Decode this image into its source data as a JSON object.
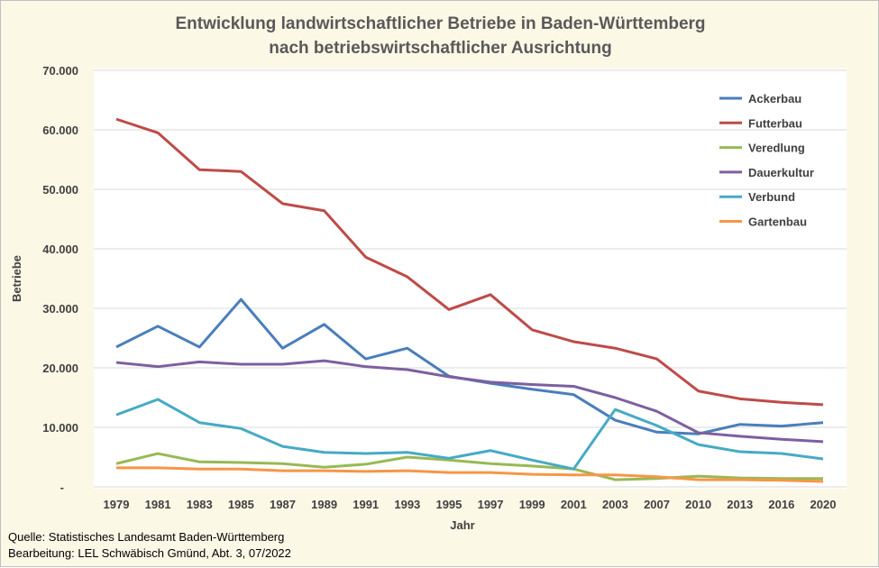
{
  "chart_data": {
    "type": "line",
    "title": [
      "Entwicklung landwirtschaftlicher Betriebe in Baden-Württemberg",
      "nach betriebswirtschaftlicher Ausrichtung"
    ],
    "xlabel": "Jahr",
    "ylabel": "Betriebe",
    "ylim": [
      0,
      70000
    ],
    "yticks": [
      "-",
      "10.000",
      "20.000",
      "30.000",
      "40.000",
      "50.000",
      "60.000",
      "70.000"
    ],
    "grid": true,
    "legend_position": "top-right",
    "categories": [
      "1979",
      "1981",
      "1983",
      "1985",
      "1987",
      "1989",
      "1991",
      "1993",
      "1995",
      "1997",
      "1999",
      "2001",
      "2003",
      "2007",
      "2010",
      "2013",
      "2016",
      "2020"
    ],
    "series": [
      {
        "name": "Ackerbau",
        "color": "#4a7ebb",
        "values": [
          23500,
          27000,
          23500,
          31500,
          23300,
          27300,
          21500,
          23300,
          18600,
          17400,
          16400,
          15500,
          11200,
          9200,
          8900,
          10500,
          10200,
          10800
        ]
      },
      {
        "name": "Futterbau",
        "color": "#be4b48",
        "values": [
          61800,
          59500,
          53300,
          53000,
          47600,
          46400,
          38600,
          35300,
          29800,
          32300,
          26400,
          24400,
          23300,
          21500,
          16100,
          14800,
          14200,
          13800
        ]
      },
      {
        "name": "Veredlung",
        "color": "#98b954",
        "values": [
          3900,
          5600,
          4200,
          4100,
          3900,
          3300,
          3800,
          5000,
          4500,
          3900,
          3500,
          3000,
          1200,
          1400,
          1800,
          1500,
          1400,
          1400
        ]
      },
      {
        "name": "Dauerkultur",
        "color": "#7d5fa0",
        "values": [
          20900,
          20200,
          21000,
          20600,
          20600,
          21200,
          20200,
          19700,
          18500,
          17600,
          17200,
          16900,
          15000,
          12700,
          9100,
          8500,
          8000,
          7600
        ]
      },
      {
        "name": "Verbund",
        "color": "#46aac5",
        "values": [
          12100,
          14700,
          10800,
          9800,
          6800,
          5800,
          5600,
          5800,
          4800,
          6100,
          4500,
          3000,
          13000,
          10300,
          7100,
          5900,
          5600,
          4700
        ]
      },
      {
        "name": "Gartenbau",
        "color": "#f79646",
        "values": [
          3200,
          3200,
          3000,
          3000,
          2700,
          2700,
          2600,
          2700,
          2400,
          2400,
          2100,
          2000,
          2000,
          1700,
          1200,
          1200,
          1100,
          900
        ]
      }
    ]
  },
  "footer": {
    "source": "Quelle: Statistisches Landesamt Baden-Württemberg",
    "editor": "Bearbeitung: LEL Schwäbisch Gmünd, Abt. 3, 07/2022"
  }
}
